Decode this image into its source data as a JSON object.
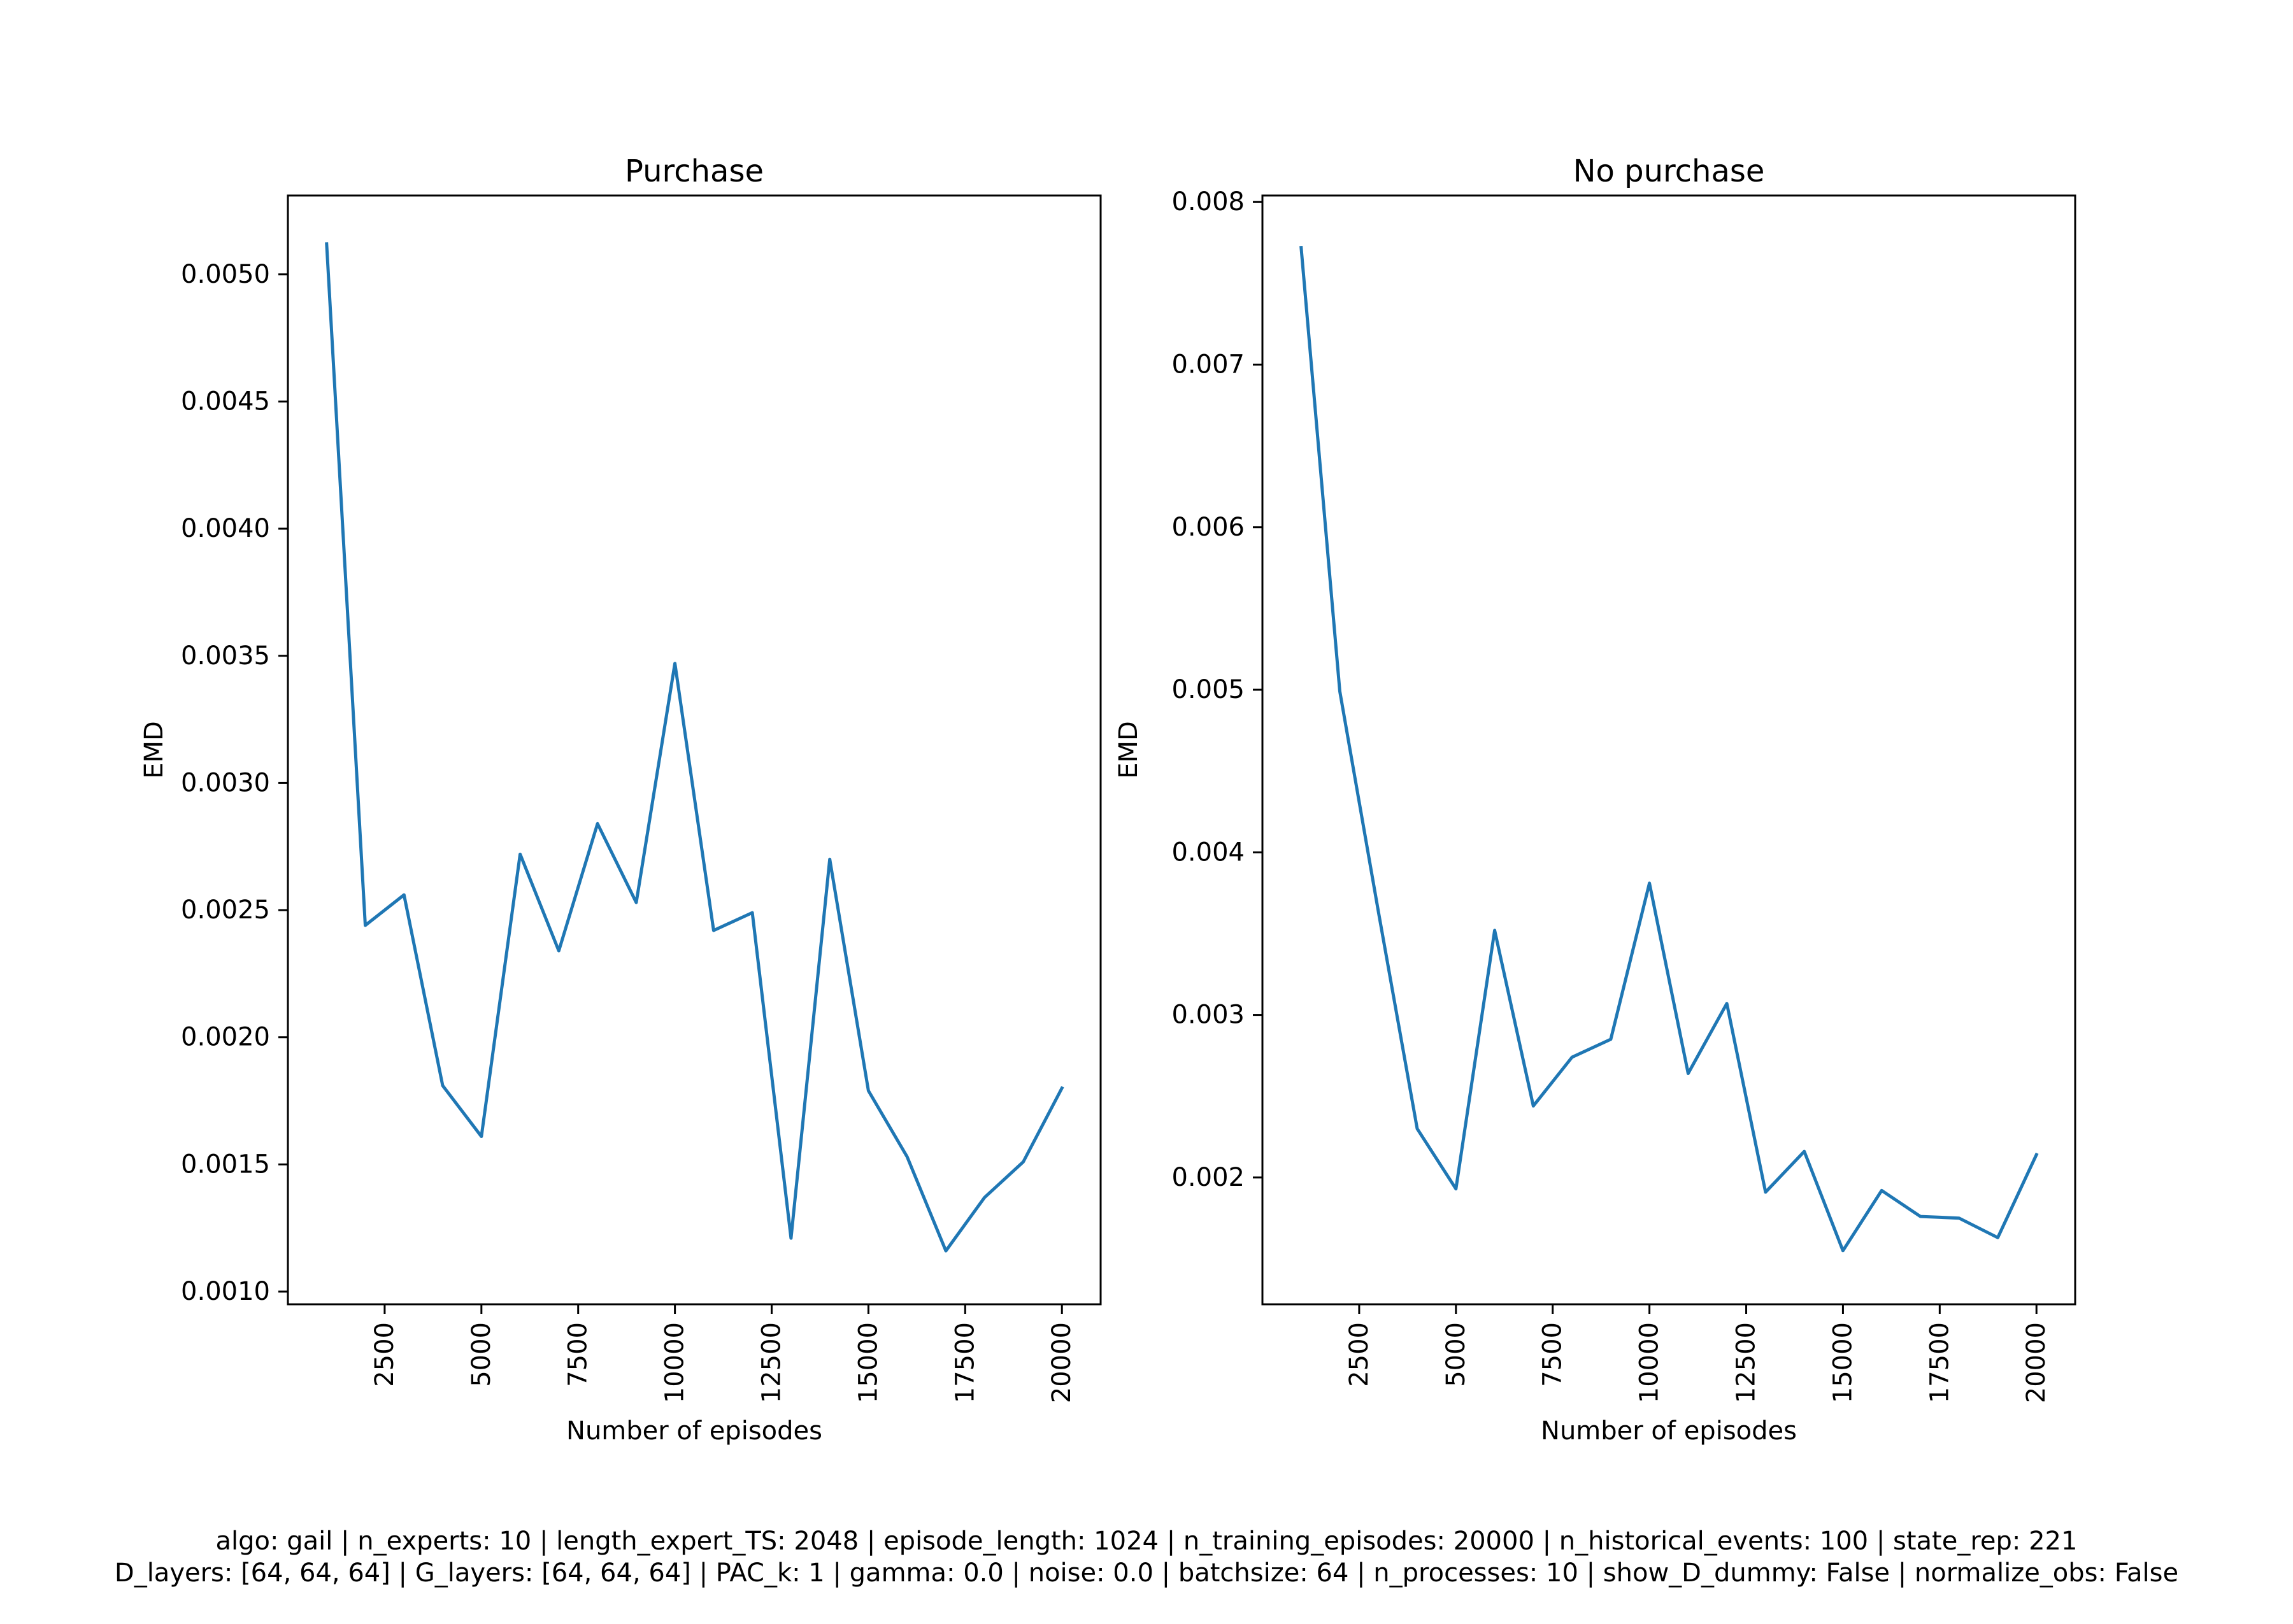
{
  "chart_data": [
    {
      "type": "line",
      "title": "Purchase",
      "xlabel": "Number of episodes",
      "ylabel": "EMD",
      "xlim": [
        0,
        21000
      ],
      "ylim": [
        0.00095,
        0.00531
      ],
      "xticks": [
        2500,
        5000,
        7500,
        10000,
        12500,
        15000,
        17500,
        20000
      ],
      "xtick_labels": [
        "2500",
        "5000",
        "7500",
        "10000",
        "12500",
        "15000",
        "17500",
        "20000"
      ],
      "yticks": [
        0.001,
        0.0015,
        0.002,
        0.0025,
        0.003,
        0.0035,
        0.004,
        0.0045,
        0.005
      ],
      "ytick_labels": [
        "0.0010",
        "0.0015",
        "0.0020",
        "0.0025",
        "0.0030",
        "0.0035",
        "0.0040",
        "0.0045",
        "0.0050"
      ],
      "x": [
        1000,
        2000,
        3000,
        4000,
        5000,
        6000,
        7000,
        8000,
        9000,
        10000,
        11000,
        12000,
        13000,
        14000,
        15000,
        16000,
        17000,
        18000,
        19000,
        20000
      ],
      "series": [
        {
          "color": "#1f77b4",
          "values": [
            0.00512,
            0.00244,
            0.00256,
            0.00181,
            0.00161,
            0.00272,
            0.00234,
            0.00284,
            0.00253,
            0.00347,
            0.00242,
            0.00249,
            0.00121,
            0.0027,
            0.00179,
            0.00153,
            0.00116,
            0.00137,
            0.00151,
            0.0018
          ]
        }
      ],
      "grid": false
    },
    {
      "type": "line",
      "title": "No purchase",
      "xlabel": "Number of episodes",
      "ylabel": "EMD",
      "xlim": [
        0,
        21000
      ],
      "ylim": [
        0.00122,
        0.00804
      ],
      "xticks": [
        2500,
        5000,
        7500,
        10000,
        12500,
        15000,
        17500,
        20000
      ],
      "xtick_labels": [
        "2500",
        "5000",
        "7500",
        "10000",
        "12500",
        "15000",
        "17500",
        "20000"
      ],
      "yticks": [
        0.002,
        0.003,
        0.004,
        0.005,
        0.006,
        0.007,
        0.008
      ],
      "ytick_labels": [
        "0.002",
        "0.003",
        "0.004",
        "0.005",
        "0.006",
        "0.007",
        "0.008"
      ],
      "x": [
        1000,
        2000,
        3000,
        4000,
        5000,
        6000,
        7000,
        8000,
        9000,
        10000,
        11000,
        12000,
        13000,
        14000,
        15000,
        16000,
        17000,
        18000,
        19000,
        20000
      ],
      "series": [
        {
          "color": "#1f77b4",
          "values": [
            0.00772,
            0.00499,
            0.00363,
            0.0023,
            0.00193,
            0.00352,
            0.00244,
            0.00274,
            0.00285,
            0.00381,
            0.00264,
            0.00307,
            0.00191,
            0.00216,
            0.00155,
            0.00192,
            0.00176,
            0.00175,
            0.00163,
            0.00214
          ]
        }
      ],
      "grid": false
    }
  ],
  "caption": {
    "line1": "algo: gail | n_experts: 10 | length_expert_TS: 2048 | episode_length: 1024 | n_training_episodes: 20000 | n_historical_events: 100 | state_rep: 221",
    "line2": "D_layers: [64, 64, 64] | G_layers: [64, 64, 64] | PAC_k: 1 | gamma: 0.0 | noise: 0.0 | batchsize: 64 | n_processes: 10 | show_D_dummy: False | normalize_obs: False"
  }
}
